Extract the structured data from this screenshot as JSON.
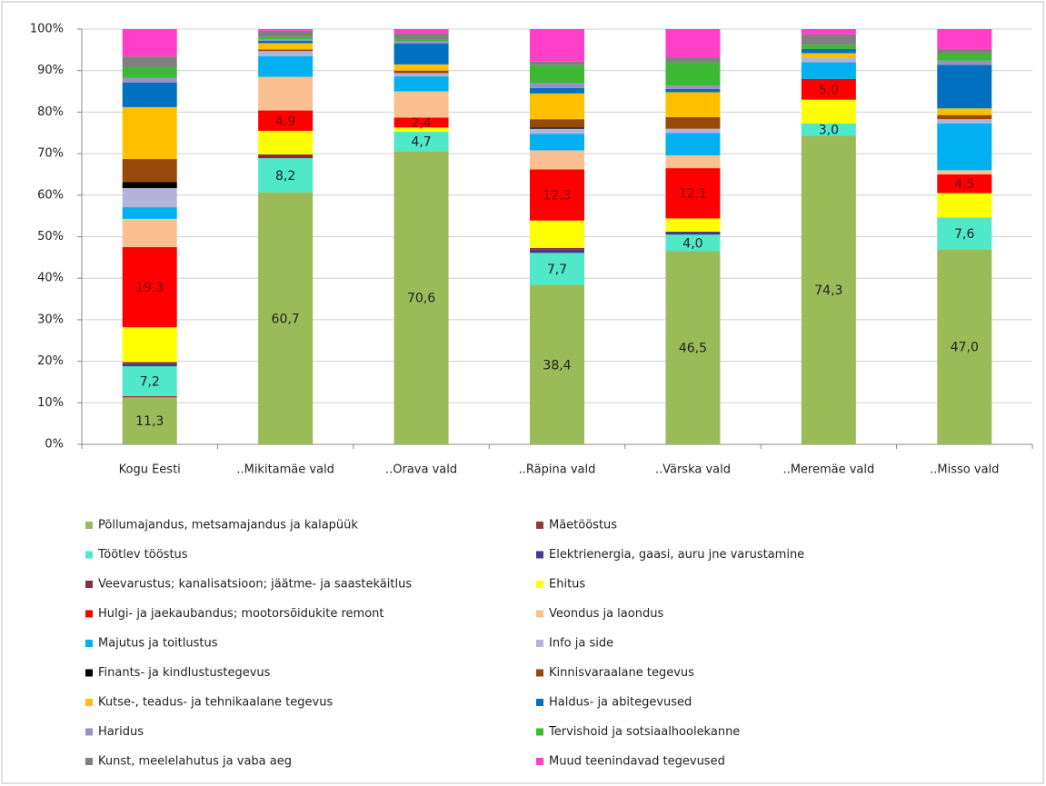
{
  "chart_data": {
    "type": "bar",
    "stacked": true,
    "grid": true,
    "categories": [
      "Kogu Eesti",
      "..Mikitamäe vald",
      "..Orava vald",
      "..Räpina vald",
      "..Värska vald",
      "..Meremäe vald",
      "..Misso vald"
    ],
    "ylim": [
      0,
      100
    ],
    "yticks": [
      {
        "value": 0,
        "label": "0%"
      },
      {
        "value": 10,
        "label": "10%"
      },
      {
        "value": 20,
        "label": "20%"
      },
      {
        "value": 30,
        "label": "30%"
      },
      {
        "value": 40,
        "label": "40%"
      },
      {
        "value": 50,
        "label": "50%"
      },
      {
        "value": 60,
        "label": "60%"
      },
      {
        "value": 70,
        "label": "70%"
      },
      {
        "value": 80,
        "label": "80%"
      },
      {
        "value": 90,
        "label": "90%"
      },
      {
        "value": 100,
        "label": "100%"
      }
    ],
    "series": [
      {
        "name": "Põllumajandus, metsamajandus ja kalapüük",
        "color": "#9bbb59",
        "values": [
          11.3,
          60.7,
          70.6,
          38.4,
          46.5,
          74.3,
          47.0
        ],
        "value_labels": [
          "11,3",
          "60,7",
          "70,6",
          "38,4",
          "46,5",
          "74,3",
          "47,0"
        ]
      },
      {
        "name": "Mäetööstus",
        "color": "#953735",
        "values": [
          0.3,
          0,
          0,
          0,
          0,
          0,
          0
        ]
      },
      {
        "name": "Töötlev tööstus",
        "color": "#4fe8c8",
        "values": [
          7.2,
          8.2,
          4.7,
          7.7,
          4.0,
          3.0,
          7.6
        ],
        "value_labels": [
          "7,2",
          "8,2",
          "4,7",
          "7,7",
          "4,0",
          "3,0",
          "7,6"
        ]
      },
      {
        "name": "Elektrienergia, gaasi, auru jne varustamine",
        "color": "#403c8c",
        "values": [
          0.6,
          0,
          0,
          0.8,
          0.7,
          0,
          0
        ]
      },
      {
        "name": "Veevarustus; kanalisatsioon; jäätme- ja saastekäitlus",
        "color": "#8c2a3c",
        "values": [
          0.4,
          0.9,
          0,
          0.4,
          0,
          0,
          0
        ]
      },
      {
        "name": "Ehitus",
        "color": "#ffff00",
        "values": [
          8.4,
          5.7,
          1.0,
          6.6,
          3.2,
          5.7,
          5.9
        ]
      },
      {
        "name": "Hulgi- ja jaekaubandus; mootorsõidukite remont",
        "color": "#ff0000",
        "values": [
          19.3,
          4.9,
          2.4,
          12.3,
          12.1,
          5.0,
          4.5
        ],
        "value_labels": [
          "19,3",
          "4,9",
          "2,4",
          "12,3",
          "12,1",
          "5,0",
          "4,5"
        ]
      },
      {
        "name": "Veondus ja laondus",
        "color": "#fac090",
        "values": [
          6.8,
          8.1,
          6.3,
          4.6,
          3.1,
          0,
          1.0
        ]
      },
      {
        "name": "Majutus ja toitlustus",
        "color": "#00b0f0",
        "values": [
          2.8,
          5.0,
          3.6,
          4.0,
          5.4,
          4.0,
          11.3
        ]
      },
      {
        "name": "Info ja side",
        "color": "#b3b3dc",
        "values": [
          4.6,
          1.2,
          0.8,
          1.2,
          1.0,
          1.0,
          1.0
        ]
      },
      {
        "name": "Finants- ja kindlustustegevus",
        "color": "#000000",
        "values": [
          1.5,
          0,
          0,
          0.3,
          0,
          0,
          0
        ]
      },
      {
        "name": "Kinnisvaraalane tegevus",
        "color": "#984807",
        "values": [
          5.5,
          0.4,
          0.6,
          2.0,
          2.8,
          0,
          1.0
        ]
      },
      {
        "name": "Kutse-, teadus- ja tehnikaalane tegevus",
        "color": "#ffc000",
        "values": [
          12.5,
          1.5,
          1.5,
          6.2,
          6.0,
          1.2,
          1.6
        ]
      },
      {
        "name": "Haldus- ja abitegevused",
        "color": "#0070c0",
        "values": [
          5.9,
          0.6,
          5.0,
          1.3,
          0.8,
          1.0,
          10.5
        ]
      },
      {
        "name": "Haridus",
        "color": "#9990c4",
        "values": [
          1.2,
          0.4,
          0.5,
          1.2,
          0.8,
          0,
          1.0
        ]
      },
      {
        "name": "Tervishoid ja sotsiaalhoolekanne",
        "color": "#3cb832",
        "values": [
          2.5,
          0.6,
          0.5,
          4.3,
          5.6,
          1.0,
          1.8
        ]
      },
      {
        "name": "Kunst, meelelahutus ja vaba aeg",
        "color": "#7f7f7f",
        "values": [
          2.6,
          1.4,
          1.5,
          0.9,
          1.2,
          2.5,
          1.0
        ]
      },
      {
        "name": "Muud teenindavad tegevused",
        "color": "#ff3fc8",
        "values": [
          6.6,
          0.4,
          1.0,
          7.8,
          6.8,
          1.3,
          4.8
        ]
      }
    ]
  }
}
